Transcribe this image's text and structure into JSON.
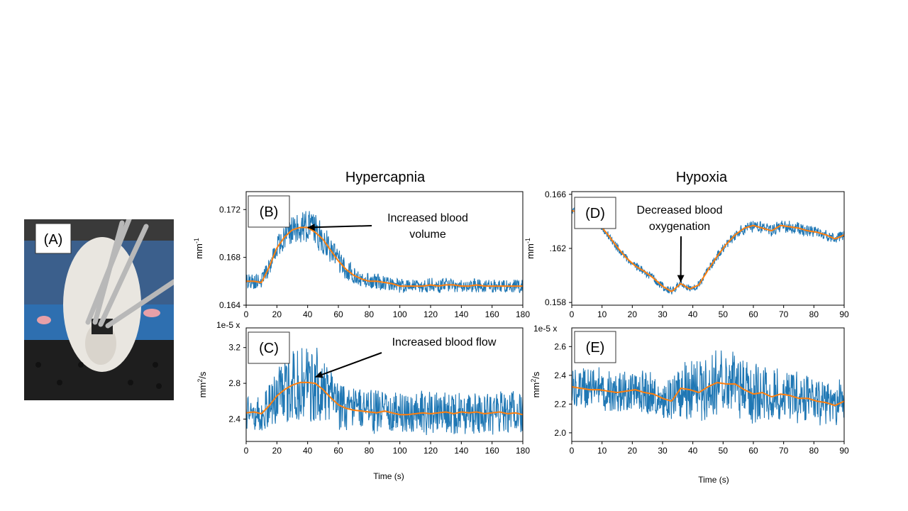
{
  "figure": {
    "photo_label": "(A)",
    "column_titles": {
      "hypercapnia": "Hypercapnia",
      "hypoxia": "Hypoxia"
    },
    "x_label": "Time (s)",
    "colors": {
      "raw": "#1f77b4",
      "smooth": "#ff7f0e"
    },
    "photo_icon": "rat-probe-photo"
  },
  "chart_data": [
    {
      "type": "line",
      "panel": "(B)",
      "ylabel": "mm-1",
      "xlim": [
        0,
        180
      ],
      "ylim": [
        0.164,
        0.1735
      ],
      "x_ticks": [
        0,
        20,
        40,
        60,
        80,
        100,
        120,
        140,
        160,
        180
      ],
      "y_ticks": [
        0.164,
        0.168,
        0.172
      ],
      "y_tick_labels": [
        "0.164",
        "0.168",
        "0.172"
      ],
      "annotation": {
        "lines": [
          "Increased blood",
          "volume"
        ],
        "target": [
          40,
          0.1705
        ]
      },
      "series": [
        {
          "x": [
            0,
            5,
            10,
            15,
            20,
            25,
            30,
            35,
            40,
            45,
            50,
            55,
            60,
            65,
            70,
            75,
            80,
            85,
            90,
            95,
            100,
            105,
            110,
            115,
            120,
            125,
            130,
            135,
            140,
            145,
            150,
            155,
            160,
            165,
            170,
            175,
            180
          ],
          "values": [
            0.166,
            0.166,
            0.1659,
            0.1672,
            0.1688,
            0.1697,
            0.1703,
            0.1705,
            0.1705,
            0.1701,
            0.1695,
            0.1686,
            0.1677,
            0.167,
            0.1665,
            0.1662,
            0.166,
            0.166,
            0.1659,
            0.1658,
            0.1656,
            0.1656,
            0.1656,
            0.1656,
            0.1657,
            0.1656,
            0.1657,
            0.1657,
            0.1656,
            0.1656,
            0.1657,
            0.1656,
            0.1656,
            0.1656,
            0.1656,
            0.1656,
            0.1656
          ],
          "spread": [
            0.0007,
            0.0007,
            0.0007,
            0.0009,
            0.001,
            0.0011,
            0.0013,
            0.0015,
            0.0016,
            0.0015,
            0.0013,
            0.0011,
            0.001,
            0.0009,
            0.0008,
            0.0007,
            0.0007,
            0.0007,
            0.0007,
            0.0006,
            0.0006,
            0.0006,
            0.0006,
            0.0006,
            0.0006,
            0.0006,
            0.0006,
            0.0006,
            0.0006,
            0.0006,
            0.0006,
            0.0006,
            0.0006,
            0.0006,
            0.0006,
            0.0006,
            0.0006
          ]
        }
      ]
    },
    {
      "type": "line",
      "panel": "(C)",
      "ylabel": "mm2/s",
      "scale_note": "1e-5 x",
      "xlim": [
        0,
        180
      ],
      "ylim": [
        2.15,
        3.42
      ],
      "x_ticks": [
        0,
        20,
        40,
        60,
        80,
        100,
        120,
        140,
        160,
        180
      ],
      "y_ticks": [
        2.4,
        2.8,
        3.2
      ],
      "y_tick_labels": [
        "2.4",
        "2.8",
        "3.2"
      ],
      "annotation": {
        "lines": [
          "Increased blood flow"
        ],
        "target": [
          45,
          2.87
        ]
      },
      "series": [
        {
          "x": [
            0,
            5,
            10,
            15,
            20,
            25,
            30,
            35,
            40,
            45,
            50,
            55,
            60,
            65,
            70,
            75,
            80,
            85,
            90,
            95,
            100,
            105,
            110,
            115,
            120,
            125,
            130,
            135,
            140,
            145,
            150,
            155,
            160,
            165,
            170,
            175,
            180
          ],
          "values": [
            2.47,
            2.48,
            2.46,
            2.55,
            2.66,
            2.73,
            2.78,
            2.81,
            2.81,
            2.8,
            2.73,
            2.64,
            2.56,
            2.52,
            2.5,
            2.49,
            2.48,
            2.47,
            2.49,
            2.47,
            2.45,
            2.45,
            2.46,
            2.47,
            2.46,
            2.47,
            2.48,
            2.46,
            2.48,
            2.47,
            2.48,
            2.46,
            2.47,
            2.48,
            2.46,
            2.47,
            2.45
          ],
          "spread": [
            0.2,
            0.2,
            0.2,
            0.25,
            0.3,
            0.38,
            0.45,
            0.5,
            0.5,
            0.48,
            0.4,
            0.33,
            0.28,
            0.26,
            0.25,
            0.25,
            0.25,
            0.25,
            0.25,
            0.25,
            0.25,
            0.25,
            0.25,
            0.25,
            0.25,
            0.25,
            0.25,
            0.25,
            0.25,
            0.25,
            0.25,
            0.25,
            0.25,
            0.25,
            0.25,
            0.25,
            0.25
          ]
        }
      ]
    },
    {
      "type": "line",
      "panel": "(D)",
      "ylabel": "mm-1",
      "xlim": [
        0,
        90
      ],
      "ylim": [
        0.1578,
        0.1662
      ],
      "x_ticks": [
        0,
        10,
        20,
        30,
        40,
        50,
        60,
        70,
        80,
        90
      ],
      "y_ticks": [
        0.158,
        0.162,
        0.166
      ],
      "y_tick_labels": [
        "0.158",
        ".162",
        "0.166"
      ],
      "annotation": {
        "lines": [
          "Decreased blood",
          "oxygenation"
        ],
        "target": [
          36,
          0.1595
        ]
      },
      "series": [
        {
          "x": [
            0,
            3,
            6,
            9,
            12,
            15,
            18,
            21,
            24,
            27,
            30,
            33,
            36,
            39,
            42,
            45,
            48,
            51,
            54,
            57,
            60,
            63,
            66,
            69,
            72,
            75,
            78,
            81,
            84,
            87,
            90
          ],
          "values": [
            0.1648,
            0.1646,
            0.1643,
            0.1638,
            0.163,
            0.1621,
            0.1613,
            0.1607,
            0.1603,
            0.1598,
            0.1592,
            0.1588,
            0.1594,
            0.159,
            0.1593,
            0.1604,
            0.1614,
            0.1623,
            0.163,
            0.1635,
            0.1637,
            0.1635,
            0.1633,
            0.1637,
            0.1636,
            0.1635,
            0.1633,
            0.1632,
            0.163,
            0.1627,
            0.163
          ],
          "spread": [
            0.0003,
            0.0003,
            0.0003,
            0.0003,
            0.0003,
            0.0003,
            0.0003,
            0.0003,
            0.0003,
            0.0003,
            0.0003,
            0.0003,
            0.0003,
            0.0003,
            0.0003,
            0.0003,
            0.0004,
            0.0004,
            0.0004,
            0.0005,
            0.0005,
            0.0005,
            0.0005,
            0.0005,
            0.0005,
            0.0005,
            0.0004,
            0.0004,
            0.0004,
            0.0004,
            0.0004
          ]
        }
      ]
    },
    {
      "type": "line",
      "panel": "(E)",
      "ylabel": "mm2/s",
      "scale_note": "1e-5 x",
      "xlim": [
        0,
        90
      ],
      "ylim": [
        1.94,
        2.73
      ],
      "x_ticks": [
        0,
        10,
        20,
        30,
        40,
        50,
        60,
        70,
        80,
        90
      ],
      "y_ticks": [
        2.0,
        2.2,
        2.4,
        2.6
      ],
      "y_tick_labels": [
        "2.0",
        "2.2",
        "2.4",
        "2.6"
      ],
      "series": [
        {
          "x": [
            0,
            3,
            6,
            9,
            12,
            15,
            18,
            21,
            24,
            27,
            30,
            33,
            36,
            39,
            42,
            45,
            48,
            51,
            54,
            57,
            60,
            63,
            66,
            69,
            72,
            75,
            78,
            81,
            84,
            87,
            90
          ],
          "values": [
            2.32,
            2.31,
            2.3,
            2.3,
            2.29,
            2.28,
            2.29,
            2.3,
            2.28,
            2.27,
            2.24,
            2.22,
            2.31,
            2.3,
            2.28,
            2.32,
            2.35,
            2.34,
            2.34,
            2.3,
            2.27,
            2.28,
            2.25,
            2.27,
            2.26,
            2.24,
            2.24,
            2.22,
            2.21,
            2.19,
            2.22
          ],
          "spread": [
            0.16,
            0.15,
            0.15,
            0.16,
            0.15,
            0.15,
            0.16,
            0.15,
            0.15,
            0.16,
            0.15,
            0.15,
            0.2,
            0.22,
            0.22,
            0.24,
            0.24,
            0.24,
            0.23,
            0.22,
            0.22,
            0.21,
            0.2,
            0.19,
            0.19,
            0.18,
            0.18,
            0.17,
            0.17,
            0.17,
            0.17
          ]
        }
      ]
    }
  ]
}
